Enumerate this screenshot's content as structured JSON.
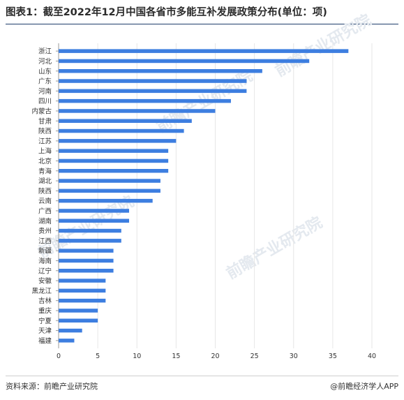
{
  "title": "图表1：截至2022年12月中国各省市多能互补发展政策分布(单位：项)",
  "source": "资料来源：前瞻产业研究院",
  "brand": "@前瞻经济学人APP",
  "watermark": "前瞻产业研究院",
  "colors": {
    "bar": "#3d7ee0",
    "grid": "#e6e6e6",
    "axis": "#9a9a9a"
  },
  "chart_data": {
    "type": "bar",
    "orientation": "horizontal",
    "categories": [
      "浙江",
      "河北",
      "山东",
      "广东",
      "河南",
      "四川",
      "内蒙古",
      "甘肃",
      "陕西",
      "江苏",
      "上海",
      "北京",
      "青海",
      "湖北",
      "陕西",
      "云南",
      "广西",
      "湖南",
      "贵州",
      "江西",
      "新疆",
      "海南",
      "辽宁",
      "安徽",
      "黑龙江",
      "吉林",
      "重庆",
      "宁夏",
      "天津",
      "福建"
    ],
    "values": [
      37,
      32,
      26,
      24,
      24,
      22,
      20,
      17,
      16,
      15,
      14,
      14,
      14,
      13,
      13,
      12,
      9,
      9,
      8,
      8,
      7,
      7,
      7,
      6,
      6,
      6,
      5,
      5,
      3,
      2
    ],
    "xlim": [
      0,
      40
    ],
    "xticks": [
      0,
      5,
      10,
      15,
      20,
      25,
      30,
      35,
      40
    ],
    "grid": true,
    "title": "图表1：截至2022年12月中国各省市多能互补发展政策分布(单位：项)",
    "xlabel": "",
    "ylabel": ""
  }
}
